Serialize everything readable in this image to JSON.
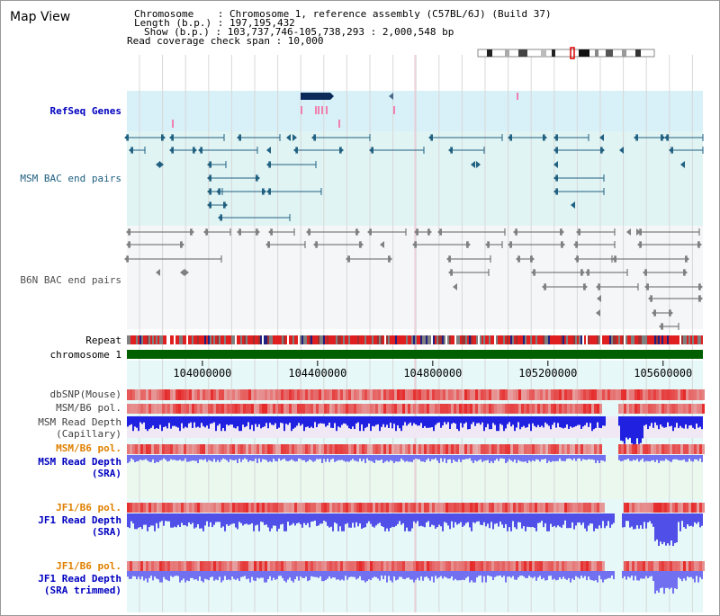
{
  "app_title": "Map View",
  "info": {
    "chromosome": "Chromosome    : Chromosome 1, reference assembly (C57BL/6J) (Build 37)",
    "length": "Length (b.p.) : 197,195,432",
    "show": "Show (b.p.) : 103,737,746-105,738,293 : 2,000,548 bp",
    "coverage": "Read coverage check span : 10,000"
  },
  "tracks": {
    "refseq": "RefSeq Genes",
    "msm_bac": "MSM BAC end pairs",
    "b6n_bac": "B6N BAC end pairs",
    "repeat": "Repeat",
    "chromosome": "chromosome 1",
    "dbsnp": "dbSNP(Mouse)",
    "msm_b6_pol_1": "MSM/B6 pol.",
    "msm_depth_cap": "MSM Read Depth",
    "msm_depth_cap_sub": "(Capillary)",
    "msm_b6_pol_2": "MSM/B6 pol.",
    "msm_depth_sra": "MSM Read Depth",
    "msm_depth_sra_sub": "(SRA)",
    "jf1_b6_pol_1": "JF1/B6 pol.",
    "jf1_depth_sra": "JF1 Read Depth",
    "jf1_depth_sra_sub": "(SRA)",
    "jf1_b6_pol_2": "JF1/B6 pol.",
    "jf1_depth_trim": "JF1 Read Depth",
    "jf1_depth_trim_sub": "(SRA trimmed)"
  },
  "axis": {
    "ticks": [
      "104000000",
      "104400000",
      "104800000",
      "105200000",
      "105600000"
    ],
    "tick_values": [
      104000000,
      104400000,
      104800000,
      105200000,
      105600000
    ],
    "range": [
      103737746,
      105738293
    ]
  },
  "colors": {
    "refseq_bg": "#d8f0f8",
    "bac_bg": "#e0f4f4",
    "feature_msm": "#206080",
    "feature_b6n": "#606060",
    "gene": "#0a2a5a",
    "chrom_bar": "#006000",
    "pol_red": "#e80000",
    "depth_blue": "#0000e0",
    "depth_light": "#6060f0"
  }
}
